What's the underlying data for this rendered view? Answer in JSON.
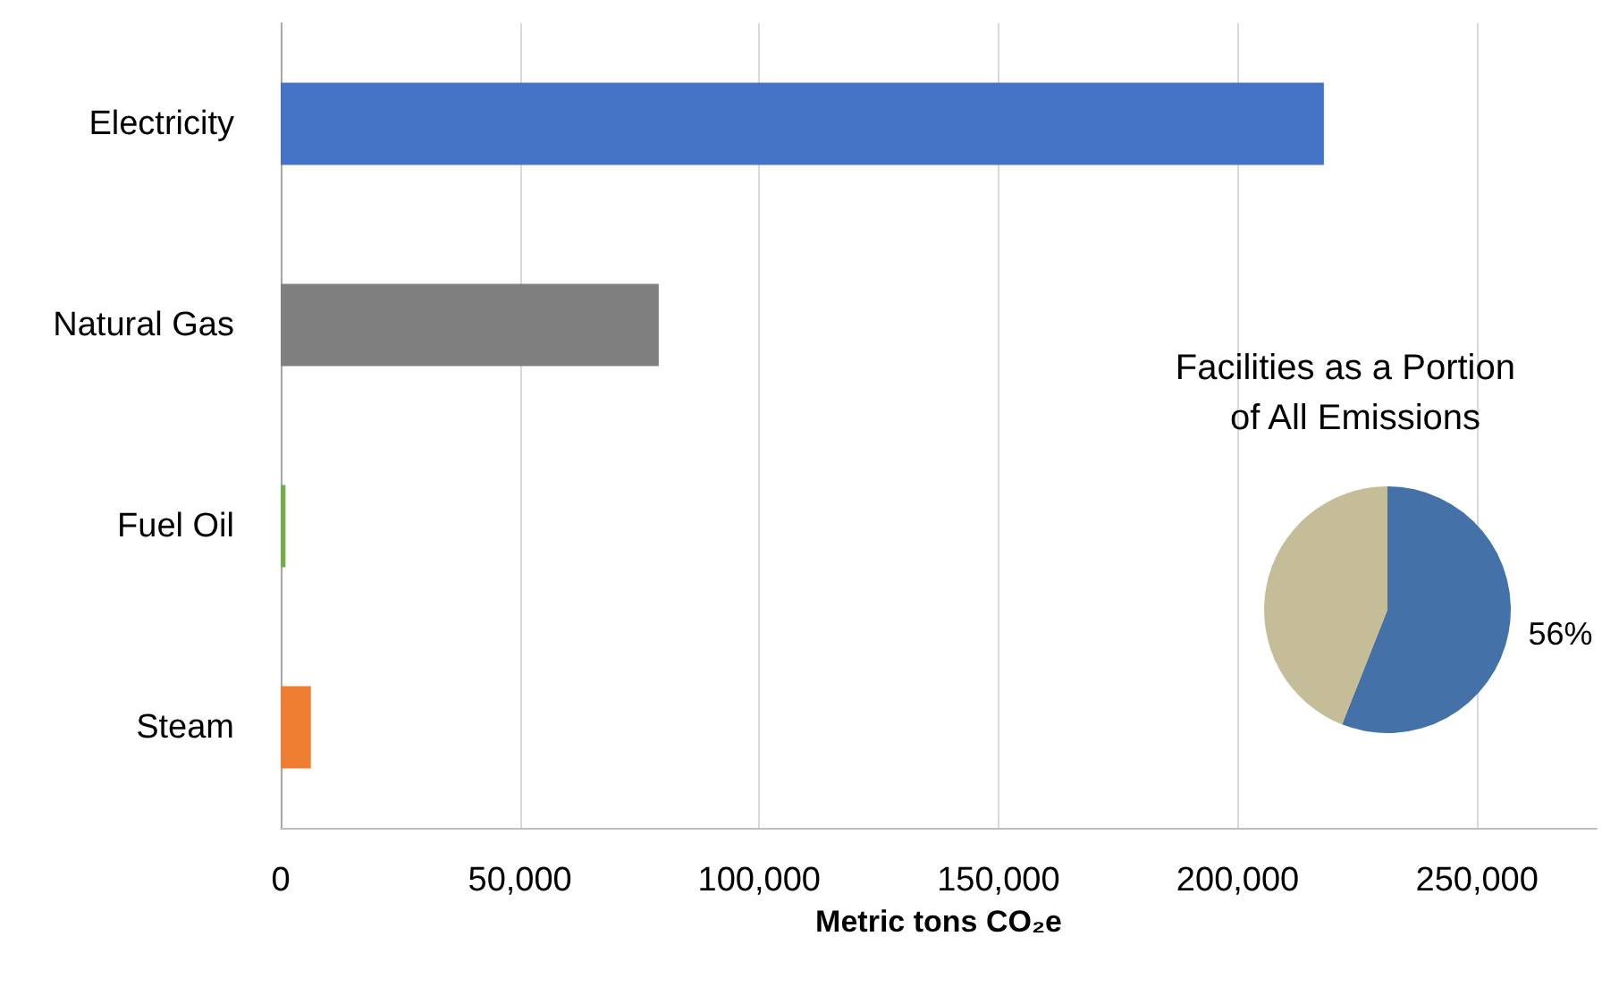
{
  "chart_data": [
    {
      "type": "bar",
      "orientation": "horizontal",
      "xlabel": "Metric tons CO₂e",
      "categories": [
        "Electricity",
        "Natural Gas",
        "Fuel Oil",
        "Steam"
      ],
      "values": [
        218000,
        79000,
        1000,
        6300
      ],
      "colors": [
        "#4472c4",
        "#7f7f7f",
        "#70ad47",
        "#ed7d31"
      ],
      "xlim": [
        0,
        275000
      ],
      "xticks": [
        0,
        {
          "value": 50000,
          "label": "50,000"
        },
        {
          "value": 100000,
          "label": "100,000"
        },
        {
          "value": 150000,
          "label": "150,000"
        },
        {
          "value": 200000,
          "label": "200,000"
        },
        {
          "value": 250000,
          "label": "250,000"
        }
      ],
      "grid": "x"
    },
    {
      "type": "pie",
      "title": "Facilities as a Portion  of All Emissions",
      "categories": [
        null,
        null
      ],
      "values": [
        56,
        44
      ],
      "colors": [
        "#4472a8",
        "#c4bd97"
      ],
      "value_labels": [
        "56%",
        null
      ]
    }
  ]
}
